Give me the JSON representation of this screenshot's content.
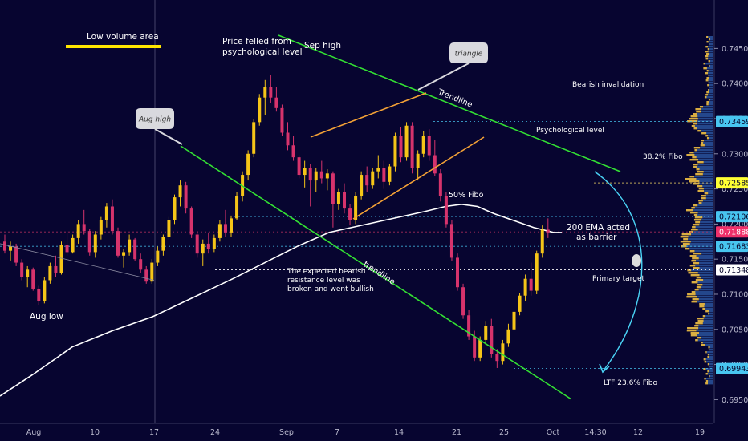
{
  "chart_data": {
    "type": "candlestick",
    "y_axis": {
      "ticks": [
        0.745,
        0.74,
        0.735,
        0.73,
        0.725,
        0.72,
        0.715,
        0.71,
        0.705,
        0.7,
        0.695
      ],
      "tick_labels": [
        "0.74500",
        "0.74000",
        "0.73500",
        "0.73000",
        "0.72500",
        "0.72000",
        "0.71500",
        "0.71000",
        "0.70500",
        "0.70000",
        "0.69500"
      ],
      "range": [
        0.694,
        0.746
      ]
    },
    "x_axis": {
      "labels": [
        "Aug",
        "10",
        "17",
        "24",
        "Sep",
        "7",
        "14",
        "21",
        "25",
        "Oct",
        "14:30",
        "12",
        "19"
      ]
    },
    "price_labels": [
      {
        "value": 0.73459,
        "text": "0.73459",
        "color": "#48c5f0"
      },
      {
        "value": 0.72585,
        "text": "0.72585",
        "color": "#ffff33"
      },
      {
        "value": 0.72106,
        "text": "0.72106",
        "color": "#48c5f0"
      },
      {
        "value": 0.71888,
        "text": "0.71888",
        "color": "#f0306a"
      },
      {
        "value": 0.71683,
        "text": "0.71683",
        "color": "#48c5f0"
      },
      {
        "value": 0.71348,
        "text": "0.71348",
        "color": "#ffffff"
      },
      {
        "value": 0.69943,
        "text": "0.69943",
        "color": "#48c5f0"
      }
    ],
    "candles": [
      [
        0.7175,
        0.7185,
        0.7158,
        0.7162
      ],
      [
        0.7162,
        0.7175,
        0.7148,
        0.7168
      ],
      [
        0.7168,
        0.7172,
        0.714,
        0.7145
      ],
      [
        0.7145,
        0.715,
        0.712,
        0.7125
      ],
      [
        0.7125,
        0.714,
        0.711,
        0.7135
      ],
      [
        0.7135,
        0.7138,
        0.7105,
        0.7108
      ],
      [
        0.7108,
        0.7112,
        0.7085,
        0.709
      ],
      [
        0.709,
        0.7125,
        0.7087,
        0.712
      ],
      [
        0.712,
        0.7145,
        0.7115,
        0.714
      ],
      [
        0.714,
        0.7155,
        0.7125,
        0.713
      ],
      [
        0.713,
        0.7175,
        0.7128,
        0.717
      ],
      [
        0.717,
        0.719,
        0.7155,
        0.716
      ],
      [
        0.716,
        0.7185,
        0.7158,
        0.718
      ],
      [
        0.718,
        0.7205,
        0.7172,
        0.72
      ],
      [
        0.72,
        0.722,
        0.7185,
        0.719
      ],
      [
        0.719,
        0.7193,
        0.7155,
        0.716
      ],
      [
        0.716,
        0.719,
        0.7152,
        0.7185
      ],
      [
        0.7185,
        0.721,
        0.7178,
        0.7205
      ],
      [
        0.7205,
        0.723,
        0.7195,
        0.7225
      ],
      [
        0.7225,
        0.7235,
        0.7185,
        0.719
      ],
      [
        0.719,
        0.7195,
        0.7152,
        0.7155
      ],
      [
        0.7155,
        0.7165,
        0.7138,
        0.716
      ],
      [
        0.716,
        0.7185,
        0.7155,
        0.7178
      ],
      [
        0.7178,
        0.718,
        0.7148,
        0.715
      ],
      [
        0.715,
        0.7158,
        0.713,
        0.7135
      ],
      [
        0.7135,
        0.714,
        0.7115,
        0.7118
      ],
      [
        0.7118,
        0.715,
        0.7115,
        0.7145
      ],
      [
        0.7145,
        0.7168,
        0.714,
        0.7162
      ],
      [
        0.7162,
        0.7185,
        0.7155,
        0.7182
      ],
      [
        0.7182,
        0.721,
        0.7178,
        0.7205
      ],
      [
        0.7205,
        0.7242,
        0.72,
        0.7238
      ],
      [
        0.7238,
        0.7262,
        0.7225,
        0.7255
      ],
      [
        0.7255,
        0.726,
        0.7215,
        0.7222
      ],
      [
        0.7222,
        0.7225,
        0.718,
        0.7185
      ],
      [
        0.7185,
        0.719,
        0.7152,
        0.7158
      ],
      [
        0.7158,
        0.7178,
        0.714,
        0.7172
      ],
      [
        0.7172,
        0.7188,
        0.7158,
        0.7165
      ],
      [
        0.7165,
        0.7185,
        0.716,
        0.718
      ],
      [
        0.718,
        0.7205,
        0.7175,
        0.72
      ],
      [
        0.72,
        0.722,
        0.7182,
        0.7188
      ],
      [
        0.7188,
        0.7212,
        0.7182,
        0.7208
      ],
      [
        0.7208,
        0.7245,
        0.7205,
        0.724
      ],
      [
        0.724,
        0.7275,
        0.7232,
        0.727
      ],
      [
        0.727,
        0.7305,
        0.7262,
        0.73
      ],
      [
        0.73,
        0.735,
        0.7295,
        0.7345
      ],
      [
        0.7345,
        0.7385,
        0.734,
        0.738
      ],
      [
        0.738,
        0.7405,
        0.7355,
        0.7395
      ],
      [
        0.7395,
        0.7412,
        0.7372,
        0.738
      ],
      [
        0.738,
        0.7395,
        0.736,
        0.7365
      ],
      [
        0.7365,
        0.737,
        0.7325,
        0.733
      ],
      [
        0.733,
        0.7345,
        0.7305,
        0.7312
      ],
      [
        0.7312,
        0.7325,
        0.729,
        0.7295
      ],
      [
        0.7295,
        0.7298,
        0.7265,
        0.727
      ],
      [
        0.727,
        0.729,
        0.7252,
        0.728
      ],
      [
        0.728,
        0.7285,
        0.7225,
        0.7262
      ],
      [
        0.7262,
        0.728,
        0.7245,
        0.7275
      ],
      [
        0.7275,
        0.729,
        0.7258,
        0.7265
      ],
      [
        0.7265,
        0.7278,
        0.7248,
        0.7272
      ],
      [
        0.7272,
        0.7275,
        0.7195,
        0.7228
      ],
      [
        0.7228,
        0.725,
        0.722,
        0.7245
      ],
      [
        0.7245,
        0.7258,
        0.7215,
        0.7222
      ],
      [
        0.7222,
        0.7228,
        0.7198,
        0.7205
      ],
      [
        0.7205,
        0.7245,
        0.72,
        0.724
      ],
      [
        0.724,
        0.7275,
        0.7235,
        0.727
      ],
      [
        0.727,
        0.7282,
        0.7245,
        0.7255
      ],
      [
        0.7255,
        0.728,
        0.725,
        0.7275
      ],
      [
        0.7275,
        0.7298,
        0.7265,
        0.728
      ],
      [
        0.728,
        0.729,
        0.725,
        0.726
      ],
      [
        0.726,
        0.7285,
        0.7255,
        0.7282
      ],
      [
        0.7282,
        0.733,
        0.7275,
        0.7325
      ],
      [
        0.7325,
        0.7338,
        0.7288,
        0.7295
      ],
      [
        0.7295,
        0.7345,
        0.729,
        0.734
      ],
      [
        0.734,
        0.7345,
        0.7272,
        0.728
      ],
      [
        0.728,
        0.7305,
        0.7262,
        0.73
      ],
      [
        0.73,
        0.7332,
        0.7295,
        0.7325
      ],
      [
        0.7325,
        0.7335,
        0.729,
        0.7298
      ],
      [
        0.7298,
        0.732,
        0.7268,
        0.7272
      ],
      [
        0.7272,
        0.7278,
        0.7232,
        0.724
      ],
      [
        0.724,
        0.7245,
        0.7195,
        0.72
      ],
      [
        0.72,
        0.7205,
        0.7148,
        0.7152
      ],
      [
        0.7152,
        0.7158,
        0.7105,
        0.711
      ],
      [
        0.711,
        0.7115,
        0.7065,
        0.707
      ],
      [
        0.707,
        0.7078,
        0.7035,
        0.704
      ],
      [
        0.704,
        0.7048,
        0.7005,
        0.701
      ],
      [
        0.701,
        0.704,
        0.7005,
        0.7035
      ],
      [
        0.7035,
        0.7062,
        0.7028,
        0.7055
      ],
      [
        0.7055,
        0.7065,
        0.701,
        0.7015
      ],
      [
        0.7015,
        0.7022,
        0.6995,
        0.7005
      ],
      [
        0.7005,
        0.7035,
        0.7,
        0.703
      ],
      [
        0.703,
        0.7058,
        0.7025,
        0.705
      ],
      [
        0.705,
        0.708,
        0.7045,
        0.7075
      ],
      [
        0.7075,
        0.7102,
        0.707,
        0.7098
      ],
      [
        0.7098,
        0.7128,
        0.709,
        0.7122
      ],
      [
        0.7122,
        0.7145,
        0.7098,
        0.7105
      ],
      [
        0.7105,
        0.7162,
        0.71,
        0.7158
      ],
      [
        0.7158,
        0.7198,
        0.7152,
        0.7192
      ],
      [
        0.7192,
        0.7208,
        0.718,
        0.7188
      ]
    ],
    "ema200": [
      [
        0,
        0.6955
      ],
      [
        40,
        0.6985
      ],
      [
        90,
        0.7025
      ],
      [
        140,
        0.7048
      ],
      [
        190,
        0.7068
      ],
      [
        240,
        0.7095
      ],
      [
        290,
        0.7122
      ],
      [
        330,
        0.7145
      ],
      [
        370,
        0.7168
      ],
      [
        410,
        0.7188
      ],
      [
        450,
        0.7198
      ],
      [
        490,
        0.7208
      ],
      [
        530,
        0.7218
      ],
      [
        555,
        0.7225
      ],
      [
        575,
        0.7228
      ],
      [
        595,
        0.7225
      ],
      [
        615,
        0.7215
      ],
      [
        640,
        0.7205
      ],
      [
        665,
        0.7195
      ],
      [
        690,
        0.7188
      ],
      [
        700,
        0.7188
      ]
    ],
    "annotations": [
      {
        "text": "Low volume area",
        "color": "#ffffff"
      },
      {
        "text": "Price felled from",
        "color": "#ffffff"
      },
      {
        "text": "psychological level",
        "color": "#ffffff"
      },
      {
        "text": "Sep high",
        "color": "#ffffff"
      },
      {
        "text": "triangle",
        "color": "#333333"
      },
      {
        "text": "Aug high",
        "color": "#333333"
      },
      {
        "text": "Trendline",
        "color": "#ffffff"
      },
      {
        "text": "Bearish invalidation",
        "color": "#ffffff"
      },
      {
        "text": "Psychological level",
        "color": "#ffffff"
      },
      {
        "text": "38.2% Fibo",
        "color": "#ffffff"
      },
      {
        "text": "50% Fibo",
        "color": "#ffffff"
      },
      {
        "text": "200 EMA acted",
        "color": "#ffffff"
      },
      {
        "text": "as barrier",
        "color": "#ffffff"
      },
      {
        "text": "The expected bearish",
        "color": "#ffffff"
      },
      {
        "text": "resistance level was",
        "color": "#ffffff"
      },
      {
        "text": "broken and went bullish",
        "color": "#ffffff"
      },
      {
        "text": "trendline",
        "color": "#ffffff"
      },
      {
        "text": "Primary target",
        "color": "#ffffff"
      },
      {
        "text": "LTF 23.6% Fibo",
        "color": "#ffffff"
      },
      {
        "text": "Aug low",
        "color": "#ffffff"
      }
    ],
    "colors": {
      "background": "#070530",
      "bull": "#f5c518",
      "bear": "#d6336c",
      "trend": "#33e033",
      "triangle": "#f4a236",
      "ema": "#ffffff",
      "arrow": "#4ad3f5",
      "volume_low": "#ffcc44"
    }
  }
}
